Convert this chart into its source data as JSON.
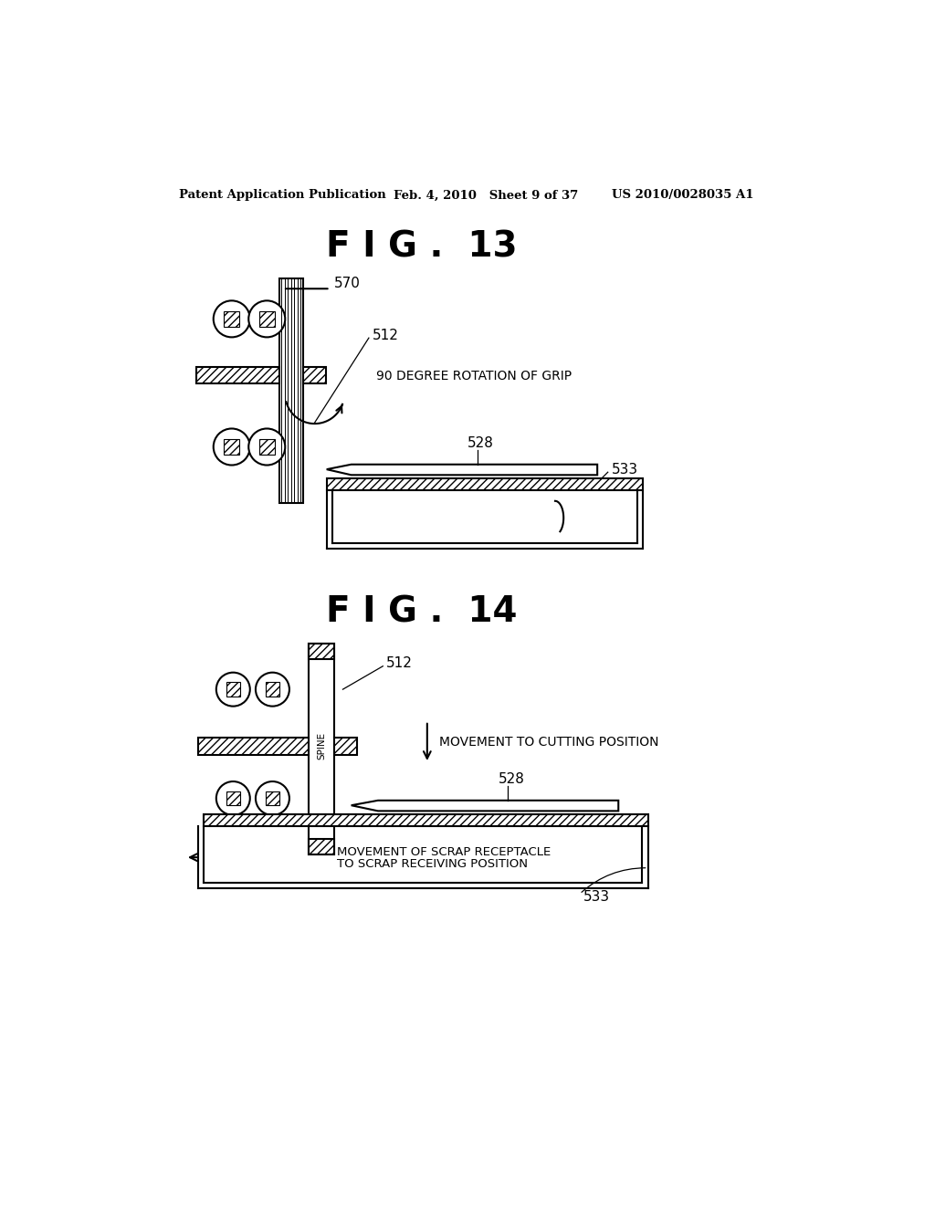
{
  "bg_color": "#ffffff",
  "header_left": "Patent Application Publication",
  "header_mid": "Feb. 4, 2010   Sheet 9 of 37",
  "header_right": "US 2010/0028035 A1",
  "fig13_title": "F I G .  13",
  "fig14_title": "F I G .  14",
  "label_570": "570",
  "label_512_top": "512",
  "label_528_top": "528",
  "label_533_top": "533",
  "label_512_bot": "512",
  "label_528_bot": "528",
  "label_533_bot": "533",
  "text_rotation": "90 DEGREE ROTATION OF GRIP",
  "text_cutting": "MOVEMENT TO CUTTING POSITION",
  "text_scrap_line1": "MOVEMENT OF SCRAP RECEPTACLE",
  "text_scrap_line2": "TO SCRAP RECEIVING POSITION",
  "text_spine": "SPINE",
  "line_color": "#000000",
  "hatch_color": "#000000"
}
